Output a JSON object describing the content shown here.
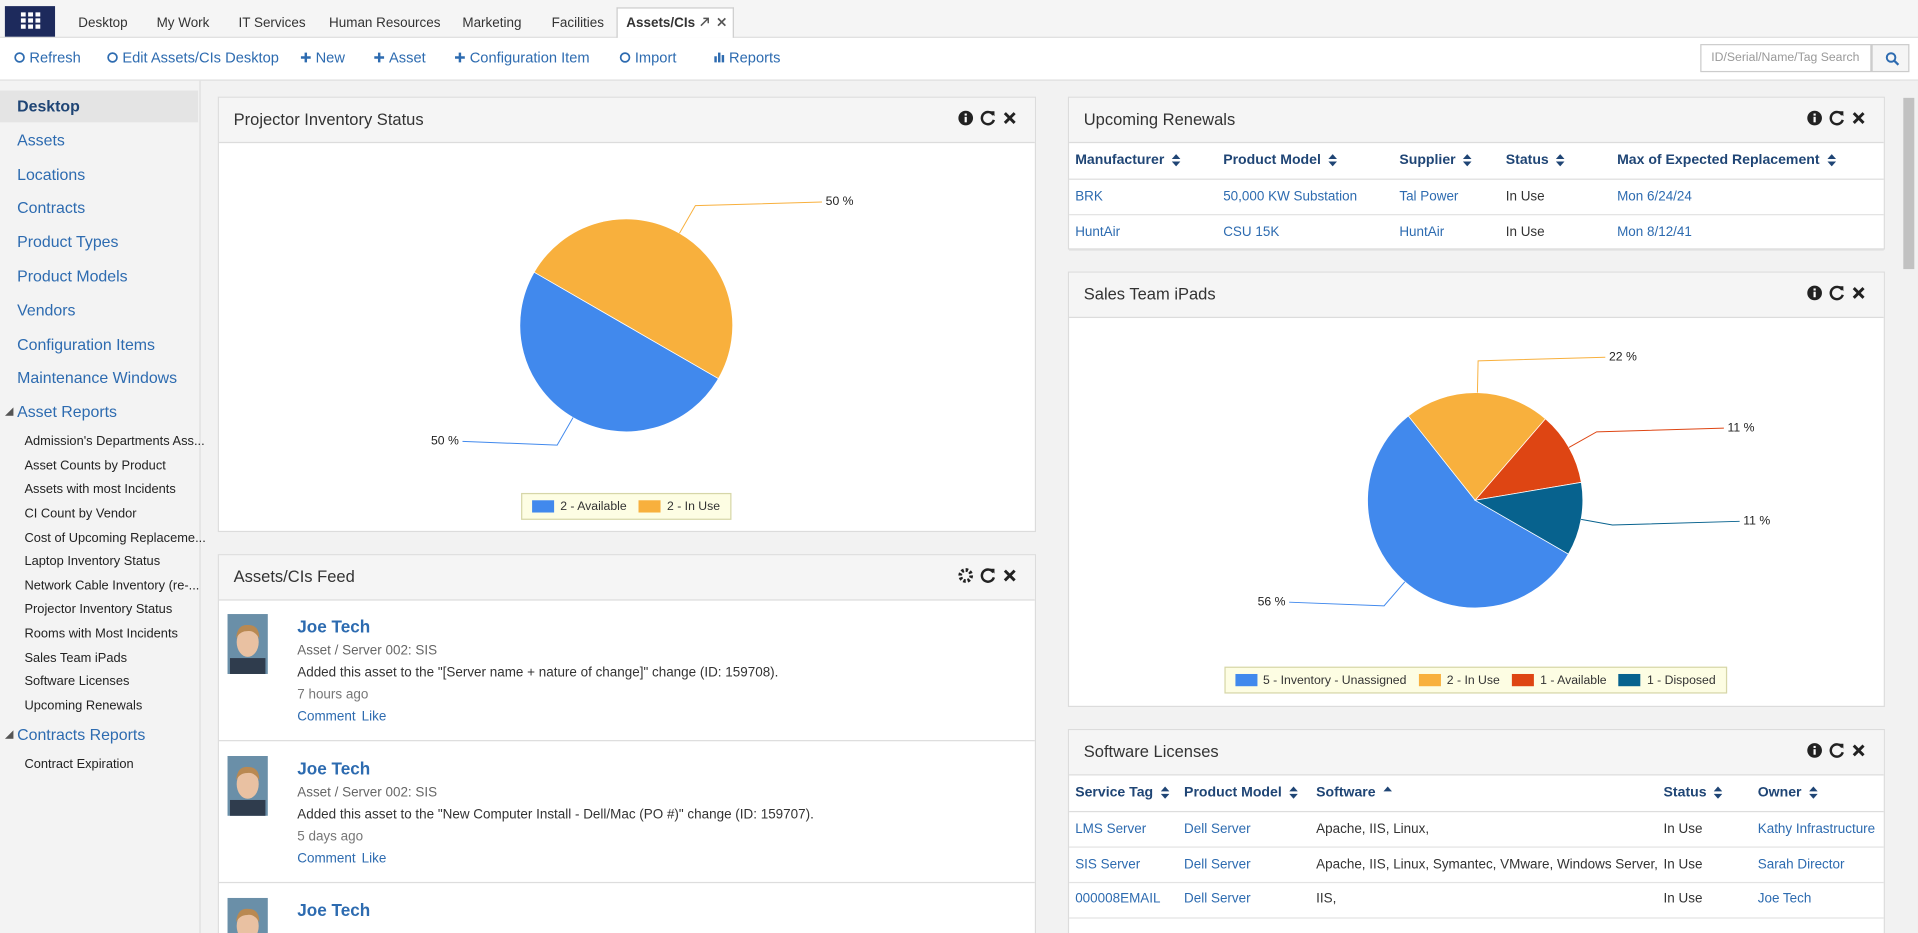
{
  "nav": {
    "tabs": [
      "Desktop",
      "My Work",
      "IT Services",
      "Human Resources",
      "Marketing",
      "Facilities",
      "Assets/CIs"
    ]
  },
  "toolbar": [
    "Refresh",
    "Edit Assets/CIs Desktop",
    "New",
    "Asset",
    "Configuration Item",
    "Import",
    "Reports"
  ],
  "search": {
    "placeholder": "ID/Serial/Name/Tag Search"
  },
  "sidebar": {
    "items": [
      "Desktop",
      "Assets",
      "Locations",
      "Contracts",
      "Product Types",
      "Product Models",
      "Vendors",
      "Configuration Items",
      "Maintenance Windows"
    ],
    "groups": [
      {
        "title": "Asset Reports",
        "items": [
          "Admission's Departments Ass...",
          "Asset Counts by Product",
          "Assets with most Incidents",
          "CI Count by Vendor",
          "Cost of Upcoming Replaceme...",
          "Laptop Inventory Status",
          "Network Cable Inventory (re-...",
          "Projector Inventory Status",
          "Rooms with Most Incidents",
          "Sales Team iPads",
          "Software Licenses",
          "Upcoming Renewals"
        ]
      },
      {
        "title": "Contracts Reports",
        "items": [
          "Contract Expiration"
        ]
      }
    ]
  },
  "panels": {
    "projector": {
      "title": "Projector Inventory Status",
      "chart": {
        "type": "pie",
        "categories": [
          "2 - Available",
          "2 - In Use"
        ],
        "values": [
          50,
          50
        ],
        "value_labels": [
          "50 %",
          "50 %"
        ],
        "colors": [
          "#4189ed",
          "#f8b03d"
        ]
      }
    },
    "feed": {
      "title": "Assets/CIs Feed",
      "items": [
        {
          "author": "Joe Tech",
          "context": "Asset / Server 002: SIS",
          "text": "Added this asset to the \"[Server name + nature of change]\" change (ID: 159708).",
          "time": "7 hours ago",
          "actions": [
            "Comment",
            "Like"
          ]
        },
        {
          "author": "Joe Tech",
          "context": "Asset / Server 002: SIS",
          "text": "Added this asset to the \"New Computer Install - Dell/Mac (PO #)\" change (ID: 159707).",
          "time": "5 days ago",
          "actions": [
            "Comment",
            "Like"
          ]
        },
        {
          "author": "Joe Tech"
        }
      ]
    },
    "renewals": {
      "title": "Upcoming Renewals",
      "table": {
        "headers": [
          "Manufacturer",
          "Product Model",
          "Supplier",
          "Status",
          "Max of Expected Replacement"
        ],
        "rows": [
          [
            "BRK",
            "50,000 KW Substation",
            "Tal Power",
            "In Use",
            "Mon 6/24/24"
          ],
          [
            "HuntAir",
            "CSU 15K",
            "HuntAir",
            "In Use",
            "Mon 8/12/41"
          ]
        ]
      }
    },
    "sales": {
      "title": "Sales Team iPads",
      "chart": {
        "type": "pie",
        "categories": [
          "5 - Inventory - Unassigned",
          "2 - In Use",
          "1 - Available",
          "1 - Disposed"
        ],
        "values": [
          56,
          22,
          11,
          11
        ],
        "value_labels": [
          "56 %",
          "22 %",
          "11 %",
          "11 %"
        ],
        "colors": [
          "#4189ed",
          "#f8b03d",
          "#de4513",
          "#07628e"
        ]
      }
    },
    "software": {
      "title": "Software Licenses",
      "table": {
        "headers": [
          "Service Tag",
          "Product Model",
          "Software",
          "Status",
          "Owner"
        ],
        "rows": [
          [
            "LMS Server",
            "Dell Server",
            "Apache, IIS, Linux,",
            "In Use",
            "Kathy Infrastructure"
          ],
          [
            "SIS Server",
            "Dell Server",
            "Apache, IIS, Linux, Symantec, VMware, Windows Server,",
            "In Use",
            "Sarah Director"
          ],
          [
            "000008EMAIL",
            "Dell Server",
            "IIS,",
            "In Use",
            "Joe Tech"
          ]
        ]
      }
    }
  }
}
